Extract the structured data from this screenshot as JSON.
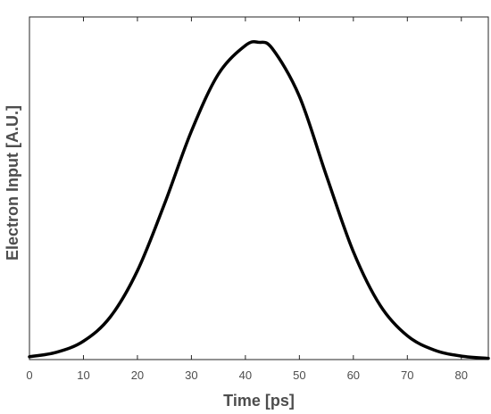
{
  "chart_data": {
    "type": "line",
    "title": "",
    "xlabel": "Time [ps]",
    "ylabel": "Electron Input [A.U.]",
    "xlim": [
      0,
      85
    ],
    "ylim": [
      0,
      1.08
    ],
    "xticks": [
      0,
      10,
      20,
      30,
      40,
      50,
      60,
      70,
      80
    ],
    "xtick_labels": [
      "0",
      "10",
      "20",
      "30",
      "40",
      "50",
      "60",
      "70",
      "80"
    ],
    "yticks": [],
    "grid": false,
    "legend": "none",
    "series": [
      {
        "color": "#000000",
        "x": [
          0,
          5,
          10,
          15,
          20,
          25,
          30,
          35,
          40,
          42.5,
          45,
          50,
          55,
          60,
          65,
          70,
          75,
          80,
          85
        ],
        "y": [
          0.009,
          0.023,
          0.058,
          0.135,
          0.28,
          0.49,
          0.72,
          0.9,
          0.99,
          1.0,
          0.98,
          0.83,
          0.58,
          0.34,
          0.17,
          0.075,
          0.03,
          0.011,
          0.004
        ]
      }
    ]
  }
}
